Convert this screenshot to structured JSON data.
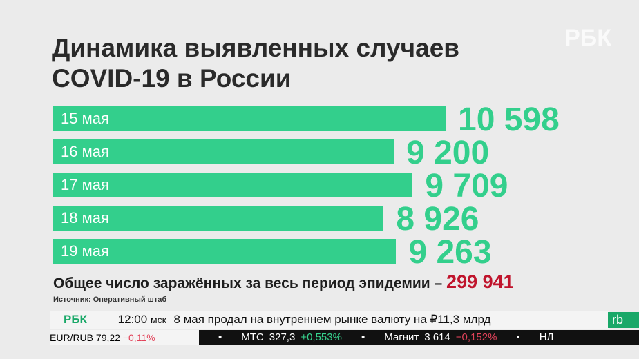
{
  "chart_data": {
    "type": "bar",
    "orientation": "horizontal",
    "title": "Динамика выявленных случаев COVID-19 в России",
    "categories": [
      "15 мая",
      "16 мая",
      "17 мая",
      "18 мая",
      "19 мая"
    ],
    "values": [
      10598,
      9200,
      9709,
      8926,
      9263
    ],
    "value_labels": [
      "10 598",
      "9 200",
      "9 709",
      "8 926",
      "9 263"
    ],
    "color": "#33cf8c"
  },
  "summary": {
    "text": "Общее число заражённых за весь период эпидемии –",
    "total": "299 941",
    "source": "Источник: Оперативный штаб"
  },
  "logo": "РБК",
  "ticker": {
    "logo": "РБК",
    "time": "12:00",
    "zone": "мск",
    "news": "8 мая продал на внутреннем рынке валюту на ₽11,3 млрд",
    "badge": "rb",
    "rate_name": "EUR/RUB",
    "rate_value": "79,22",
    "rate_change": "−0,11%",
    "quotes": [
      {
        "name": "МТС",
        "price": "327,3",
        "change": "+0,553%"
      },
      {
        "name": "Магнит",
        "price": "3 614",
        "change": "−0,152%"
      }
    ],
    "next": "НЛ"
  }
}
